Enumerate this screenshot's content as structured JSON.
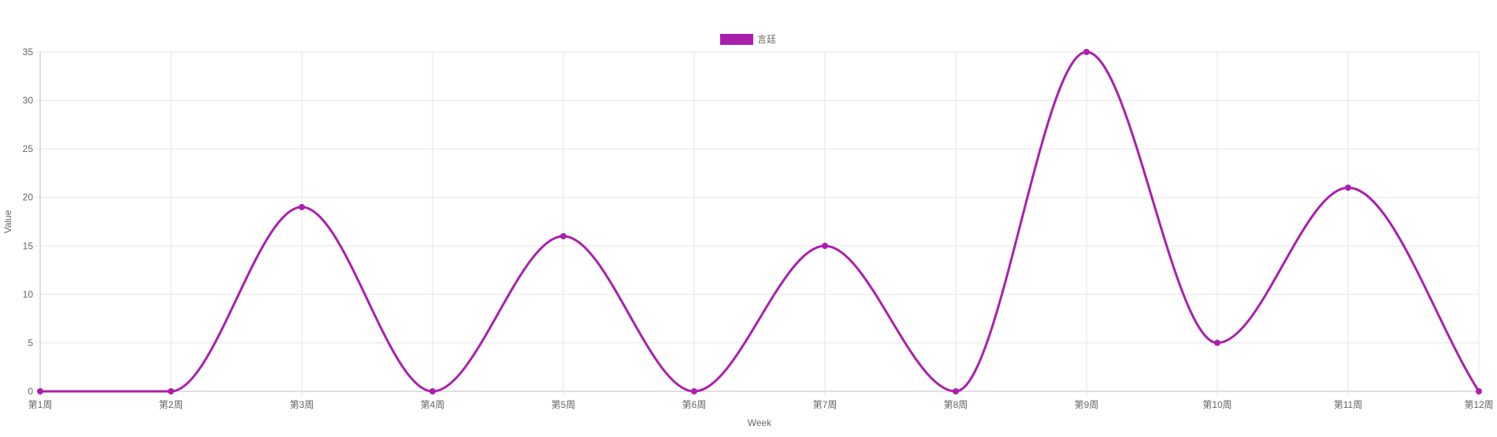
{
  "chart_data": {
    "type": "line",
    "categories": [
      "第1周",
      "第2周",
      "第3周",
      "第4周",
      "第5周",
      "第6周",
      "第7周",
      "第8周",
      "第9周",
      "第10周",
      "第11周",
      "第12周"
    ],
    "series": [
      {
        "name": "言廷",
        "values": [
          0,
          0,
          19,
          0,
          16,
          0,
          15,
          0,
          35,
          5,
          21,
          0
        ],
        "color": "#ab1fad"
      }
    ],
    "xlabel": "Week",
    "ylabel": "Value",
    "ylim": [
      0,
      35
    ],
    "yticks": [
      0,
      5,
      10,
      15,
      20,
      25,
      30,
      35
    ],
    "grid": true,
    "legend_position": "top-center",
    "smooth": true
  }
}
